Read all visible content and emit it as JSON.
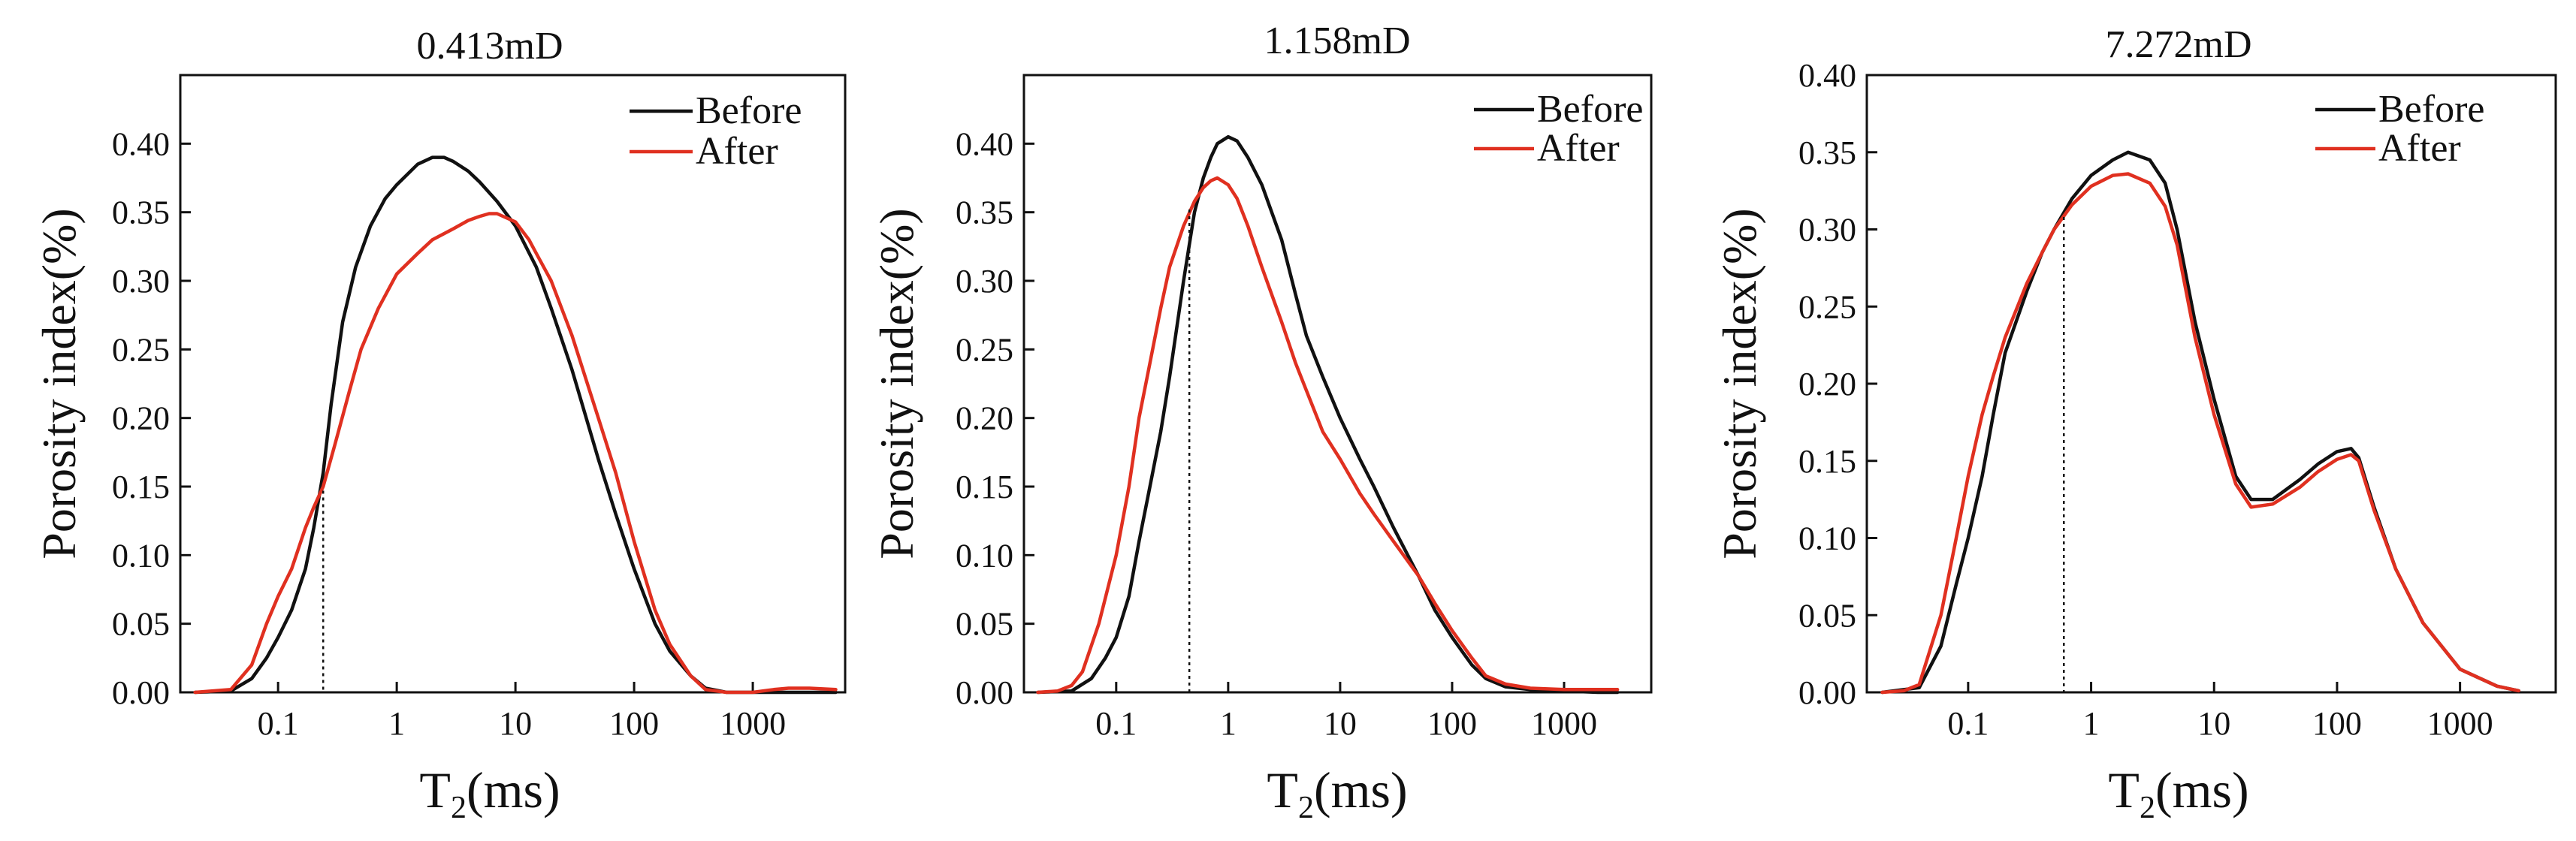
{
  "chart_data": [
    {
      "type": "line",
      "title": "0.413mD",
      "xlabel_main": "T",
      "xlabel_sub": "2",
      "xlabel_unit": "(ms)",
      "ylabel": "Porosity index(%)",
      "x_scale": "log",
      "xlim": [
        0.015,
        6000
      ],
      "ylim": [
        0,
        0.45
      ],
      "x_ticks": [
        0.1,
        1,
        10,
        100,
        1000
      ],
      "x_tick_labels": [
        "0.1",
        "1",
        "10",
        "100",
        "1000"
      ],
      "y_ticks": [
        0,
        0.05,
        0.1,
        0.15,
        0.2,
        0.25,
        0.3,
        0.35,
        0.4
      ],
      "y_tick_labels": [
        "0.00",
        "0.05",
        "0.10",
        "0.15",
        "0.20",
        "0.25",
        "0.30",
        "0.35",
        "0.40"
      ],
      "legend_position": "top-right",
      "marker_x": 0.24,
      "marker_y": 0.147,
      "series": [
        {
          "name": "Before",
          "color": "#111111",
          "x": [
            0.02,
            0.04,
            0.06,
            0.08,
            0.1,
            0.13,
            0.17,
            0.2,
            0.24,
            0.28,
            0.35,
            0.45,
            0.6,
            0.8,
            1,
            1.5,
            2,
            2.5,
            3,
            4,
            5,
            7,
            10,
            15,
            20,
            30,
            50,
            70,
            100,
            150,
            200,
            300,
            400,
            600,
            1000,
            2000,
            3000,
            5000
          ],
          "y": [
            0,
            0.001,
            0.01,
            0.025,
            0.04,
            0.06,
            0.09,
            0.12,
            0.16,
            0.21,
            0.27,
            0.31,
            0.34,
            0.36,
            0.37,
            0.385,
            0.39,
            0.39,
            0.387,
            0.38,
            0.372,
            0.358,
            0.34,
            0.31,
            0.28,
            0.235,
            0.17,
            0.13,
            0.09,
            0.05,
            0.03,
            0.012,
            0.003,
            0,
            0,
            0,
            0,
            0
          ]
        },
        {
          "name": "After",
          "color": "#e03020",
          "x": [
            0.02,
            0.04,
            0.06,
            0.08,
            0.1,
            0.13,
            0.17,
            0.2,
            0.24,
            0.3,
            0.4,
            0.5,
            0.7,
            1,
            1.5,
            2,
            3,
            4,
            5,
            6,
            7,
            10,
            13,
            15,
            20,
            30,
            50,
            70,
            100,
            150,
            200,
            300,
            400,
            600,
            1000,
            1500,
            2000,
            3000,
            5000
          ],
          "y": [
            0,
            0.002,
            0.02,
            0.05,
            0.07,
            0.09,
            0.12,
            0.135,
            0.15,
            0.18,
            0.22,
            0.25,
            0.28,
            0.305,
            0.32,
            0.33,
            0.338,
            0.344,
            0.347,
            0.349,
            0.349,
            0.343,
            0.33,
            0.32,
            0.3,
            0.26,
            0.2,
            0.16,
            0.11,
            0.06,
            0.035,
            0.012,
            0.002,
            0,
            0,
            0.002,
            0.003,
            0.003,
            0.002
          ]
        }
      ]
    },
    {
      "type": "line",
      "title": "1.158mD",
      "xlabel_main": "T",
      "xlabel_sub": "2",
      "xlabel_unit": "(ms)",
      "ylabel": "Porosity index(%)",
      "x_scale": "log",
      "xlim": [
        0.015,
        6000
      ],
      "ylim": [
        0,
        0.45
      ],
      "x_ticks": [
        0.1,
        1,
        10,
        100,
        1000
      ],
      "x_tick_labels": [
        "0.1",
        "1",
        "10",
        "100",
        "1000"
      ],
      "y_ticks": [
        0,
        0.05,
        0.1,
        0.15,
        0.2,
        0.25,
        0.3,
        0.35,
        0.4
      ],
      "y_tick_labels": [
        "0.00",
        "0.05",
        "0.10",
        "0.15",
        "0.20",
        "0.25",
        "0.30",
        "0.35",
        "0.40"
      ],
      "legend_position": "top-right",
      "marker_x": 0.45,
      "marker_y": 0.352,
      "series": [
        {
          "name": "Before",
          "color": "#111111",
          "x": [
            0.02,
            0.04,
            0.06,
            0.08,
            0.1,
            0.13,
            0.16,
            0.2,
            0.25,
            0.3,
            0.4,
            0.5,
            0.6,
            0.7,
            0.8,
            1,
            1.2,
            1.5,
            2,
            3,
            4,
            5,
            7,
            10,
            15,
            20,
            30,
            50,
            70,
            100,
            150,
            200,
            300,
            500,
            1000,
            2000,
            3000
          ],
          "y": [
            0,
            0.001,
            0.01,
            0.025,
            0.04,
            0.07,
            0.11,
            0.15,
            0.19,
            0.23,
            0.3,
            0.35,
            0.375,
            0.39,
            0.4,
            0.405,
            0.402,
            0.39,
            0.37,
            0.33,
            0.29,
            0.26,
            0.23,
            0.2,
            0.17,
            0.15,
            0.12,
            0.085,
            0.06,
            0.04,
            0.02,
            0.01,
            0.004,
            0.002,
            0.001,
            0,
            0
          ]
        },
        {
          "name": "After",
          "color": "#e03020",
          "x": [
            0.02,
            0.03,
            0.04,
            0.05,
            0.07,
            0.1,
            0.13,
            0.16,
            0.2,
            0.25,
            0.3,
            0.4,
            0.5,
            0.6,
            0.7,
            0.8,
            1,
            1.2,
            1.5,
            2,
            3,
            4,
            5,
            7,
            10,
            15,
            20,
            30,
            50,
            70,
            100,
            150,
            200,
            300,
            500,
            1000,
            2000,
            3000
          ],
          "y": [
            0,
            0.001,
            0.005,
            0.015,
            0.05,
            0.1,
            0.15,
            0.2,
            0.24,
            0.28,
            0.31,
            0.34,
            0.358,
            0.368,
            0.373,
            0.375,
            0.37,
            0.36,
            0.34,
            0.31,
            0.27,
            0.24,
            0.22,
            0.19,
            0.17,
            0.145,
            0.13,
            0.11,
            0.085,
            0.065,
            0.045,
            0.025,
            0.012,
            0.006,
            0.003,
            0.002,
            0.002,
            0.002
          ]
        }
      ]
    },
    {
      "type": "line",
      "title": "7.272mD",
      "xlabel_main": "T",
      "xlabel_sub": "2",
      "xlabel_unit": "(ms)",
      "ylabel": "Porosity index(%)",
      "x_scale": "log",
      "xlim": [
        0.015,
        6000
      ],
      "ylim": [
        0,
        0.4
      ],
      "x_ticks": [
        0.1,
        1,
        10,
        100,
        1000
      ],
      "x_tick_labels": [
        "0.1",
        "1",
        "10",
        "100",
        "1000"
      ],
      "y_ticks": [
        0,
        0.05,
        0.1,
        0.15,
        0.2,
        0.25,
        0.3,
        0.35,
        0.4
      ],
      "y_tick_labels": [
        "0.00",
        "0.05",
        "0.10",
        "0.15",
        "0.20",
        "0.25",
        "0.30",
        "0.35",
        "0.40"
      ],
      "legend_position": "top-right",
      "marker_x": 0.6,
      "marker_y": 0.308,
      "series": [
        {
          "name": "Before",
          "color": "#111111",
          "x": [
            0.02,
            0.04,
            0.06,
            0.08,
            0.1,
            0.13,
            0.16,
            0.2,
            0.3,
            0.4,
            0.5,
            0.7,
            1,
            1.5,
            2,
            3,
            4,
            5,
            7,
            10,
            15,
            20,
            30,
            50,
            70,
            100,
            130,
            150,
            200,
            300,
            500,
            1000,
            2000,
            3000
          ],
          "y": [
            0,
            0.003,
            0.03,
            0.07,
            0.1,
            0.14,
            0.18,
            0.22,
            0.26,
            0.285,
            0.3,
            0.32,
            0.335,
            0.345,
            0.35,
            0.345,
            0.33,
            0.3,
            0.24,
            0.19,
            0.14,
            0.125,
            0.125,
            0.138,
            0.148,
            0.156,
            0.158,
            0.152,
            0.12,
            0.08,
            0.045,
            0.015,
            0.004,
            0.001
          ]
        },
        {
          "name": "After",
          "color": "#e03020",
          "x": [
            0.02,
            0.03,
            0.04,
            0.06,
            0.08,
            0.1,
            0.13,
            0.16,
            0.2,
            0.3,
            0.4,
            0.5,
            0.7,
            1,
            1.5,
            2,
            3,
            4,
            5,
            7,
            10,
            15,
            20,
            30,
            50,
            70,
            100,
            130,
            150,
            200,
            300,
            500,
            1000,
            2000,
            3000
          ],
          "y": [
            0,
            0.001,
            0.005,
            0.05,
            0.1,
            0.14,
            0.18,
            0.205,
            0.23,
            0.265,
            0.285,
            0.3,
            0.316,
            0.328,
            0.335,
            0.336,
            0.33,
            0.315,
            0.29,
            0.23,
            0.18,
            0.135,
            0.12,
            0.122,
            0.133,
            0.143,
            0.151,
            0.154,
            0.15,
            0.118,
            0.08,
            0.045,
            0.015,
            0.004,
            0.001
          ]
        }
      ]
    }
  ]
}
